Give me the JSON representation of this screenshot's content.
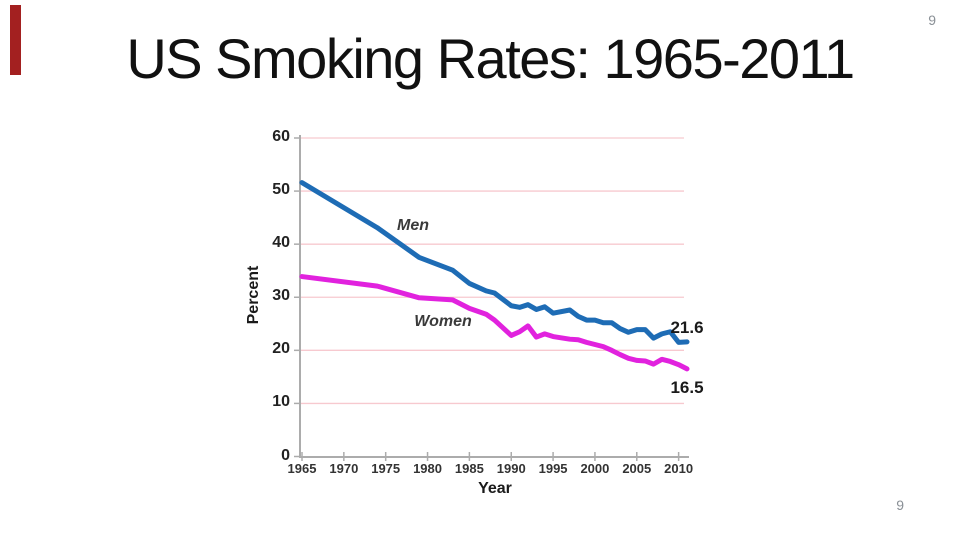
{
  "slide": {
    "title": "US Smoking Rates: 1965-2011",
    "page_number_top": "9",
    "page_number_bottom": "9",
    "accent_color": "#A32020",
    "background_color": "#FFFFFF"
  },
  "chart_data": {
    "type": "line",
    "title": "US Smoking Rates: 1965-2011",
    "xlabel": "Year",
    "ylabel": "Percent",
    "x_range": [
      1965,
      2011
    ],
    "y_range": [
      0,
      60
    ],
    "xticks": [
      "1965",
      "1970",
      "1975",
      "1980",
      "1985",
      "1990",
      "1995",
      "2000",
      "2005",
      "2010"
    ],
    "yticks": [
      "0",
      "10",
      "20",
      "30",
      "40",
      "50",
      "60"
    ],
    "grid": "horizontal",
    "legend": "inline-labels",
    "colors": {
      "gridline": "#F7C9CF",
      "axis": "#ACACAC",
      "men": "#1E6CB5",
      "women": "#E122DE"
    },
    "series": [
      {
        "name": "Men",
        "color": "#1E6CB5",
        "end_label": "21.6",
        "x": [
          1965,
          1974,
          1979,
          1983,
          1985,
          1987,
          1988,
          1990,
          1991,
          1992,
          1993,
          1994,
          1995,
          1997,
          1998,
          1999,
          2000,
          2001,
          2002,
          2003,
          2004,
          2005,
          2006,
          2007,
          2008,
          2009,
          2010,
          2011
        ],
        "values": [
          51.6,
          43.1,
          37.5,
          35.1,
          32.6,
          31.2,
          30.8,
          28.4,
          28.1,
          28.6,
          27.7,
          28.2,
          27.0,
          27.6,
          26.4,
          25.7,
          25.7,
          25.2,
          25.2,
          24.1,
          23.4,
          23.9,
          23.9,
          22.3,
          23.1,
          23.5,
          21.5,
          21.6
        ]
      },
      {
        "name": "Women",
        "color": "#E122DE",
        "end_label": "16.5",
        "x": [
          1965,
          1974,
          1979,
          1983,
          1985,
          1987,
          1988,
          1990,
          1991,
          1992,
          1993,
          1994,
          1995,
          1997,
          1998,
          1999,
          2000,
          2001,
          2002,
          2003,
          2004,
          2005,
          2006,
          2007,
          2008,
          2009,
          2010,
          2011
        ],
        "values": [
          33.9,
          32.1,
          29.9,
          29.5,
          27.9,
          26.8,
          25.7,
          22.8,
          23.5,
          24.6,
          22.5,
          23.1,
          22.6,
          22.1,
          22.0,
          21.5,
          21.1,
          20.7,
          20.0,
          19.2,
          18.5,
          18.1,
          18.0,
          17.4,
          18.3,
          17.9,
          17.3,
          16.5
        ]
      }
    ]
  }
}
